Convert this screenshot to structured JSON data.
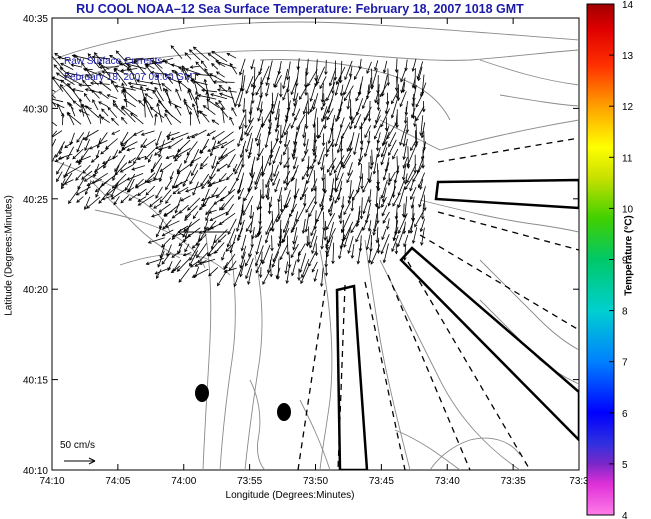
{
  "title": "RU COOL  NOAA–12  Sea Surface Temperature:  February 18, 2007 1018 GMT",
  "legend_title": "Raw Surface Currents",
  "legend_date": "February 18, 2007 09:00 GMT",
  "scale_label": "50 cm/s",
  "x_axis": {
    "label": "Longitude (Degrees:Minutes)",
    "ticks": [
      "74:10",
      "74:05",
      "74:00",
      "73:55",
      "73:50",
      "73:45",
      "73:40",
      "73:35",
      "73:3"
    ]
  },
  "y_axis": {
    "label": "Latitude (Degrees:Minutes)",
    "ticks": [
      "40:35",
      "40:30",
      "40:25",
      "40:20",
      "40:15",
      "40:10"
    ]
  },
  "colorbar": {
    "label": "Temperature (°C)",
    "min": 4,
    "max": 14,
    "ticks": [
      "14",
      "13",
      "12",
      "11",
      "10",
      "9",
      "8",
      "7",
      "6",
      "5",
      "4"
    ]
  },
  "colors": {
    "title": "#1a1aa8",
    "legend_text": "#1a1aa8",
    "contour": "#888888",
    "vectors": "#000000"
  }
}
